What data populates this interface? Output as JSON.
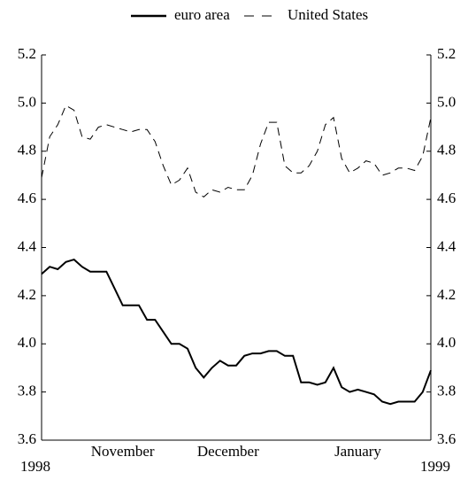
{
  "chart_data": {
    "type": "line",
    "x": [
      0,
      2,
      4,
      6,
      8,
      10,
      12,
      14,
      16,
      18,
      20,
      22,
      24,
      26,
      28,
      30,
      32,
      34,
      36,
      38,
      40,
      42,
      44,
      46,
      48,
      50,
      52,
      54,
      56,
      58,
      60,
      62,
      64,
      66,
      68,
      70,
      72,
      74,
      76,
      78,
      80,
      82,
      84,
      86,
      88,
      90,
      92,
      94,
      96
    ],
    "xlim": [
      0,
      96
    ],
    "xticks": [
      {
        "value": 20,
        "label": "November"
      },
      {
        "value": 46,
        "label": "December"
      },
      {
        "value": 78,
        "label": "January"
      }
    ],
    "x_start_label": "1998",
    "x_end_label": "1999",
    "ylim": [
      3.6,
      5.2
    ],
    "yticks": [
      {
        "value": 3.6,
        "label": "3.6"
      },
      {
        "value": 3.8,
        "label": "3.8"
      },
      {
        "value": 4.0,
        "label": "4.0"
      },
      {
        "value": 4.2,
        "label": "4.2"
      },
      {
        "value": 4.4,
        "label": "4.4"
      },
      {
        "value": 4.6,
        "label": "4.6"
      },
      {
        "value": 4.8,
        "label": "4.8"
      },
      {
        "value": 5.0,
        "label": "5.0"
      },
      {
        "value": 5.2,
        "label": "5.2"
      }
    ],
    "series": [
      {
        "name": "euro area",
        "color": "#000000",
        "dash": false,
        "values": [
          4.29,
          4.32,
          4.31,
          4.34,
          4.35,
          4.32,
          4.3,
          4.3,
          4.3,
          4.23,
          4.16,
          4.16,
          4.16,
          4.1,
          4.1,
          4.05,
          4.0,
          4.0,
          3.98,
          3.9,
          3.86,
          3.9,
          3.93,
          3.91,
          3.91,
          3.95,
          3.96,
          3.96,
          3.97,
          3.97,
          3.95,
          3.95,
          3.84,
          3.84,
          3.83,
          3.84,
          3.9,
          3.82,
          3.8,
          3.81,
          3.8,
          3.79,
          3.76,
          3.75,
          3.76,
          3.76,
          3.76,
          3.8,
          3.89
        ]
      },
      {
        "name": "United States",
        "color": "#000000",
        "dash": true,
        "values": [
          4.69,
          4.86,
          4.91,
          4.99,
          4.97,
          4.86,
          4.85,
          4.9,
          4.91,
          4.9,
          4.89,
          4.88,
          4.89,
          4.89,
          4.84,
          4.74,
          4.66,
          4.68,
          4.73,
          4.63,
          4.61,
          4.64,
          4.63,
          4.65,
          4.64,
          4.64,
          4.7,
          4.83,
          4.92,
          4.92,
          4.74,
          4.71,
          4.71,
          4.74,
          4.8,
          4.91,
          4.94,
          4.77,
          4.71,
          4.73,
          4.76,
          4.75,
          4.7,
          4.71,
          4.73,
          4.73,
          4.72,
          4.78,
          4.94
        ]
      }
    ],
    "grid": false
  }
}
